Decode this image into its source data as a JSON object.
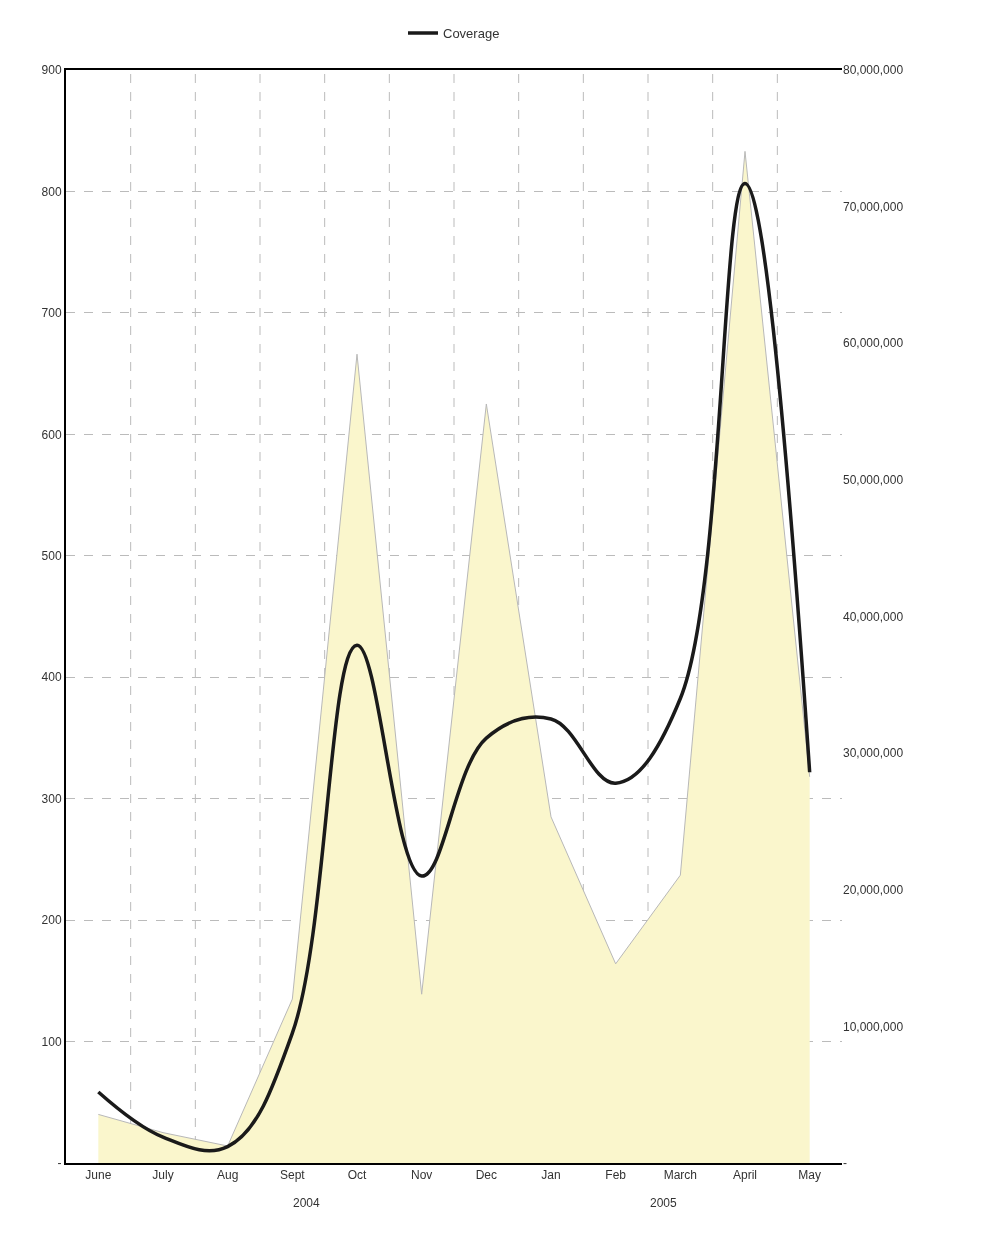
{
  "chart_data": {
    "type": "area",
    "categories": [
      "June",
      "July",
      "Aug",
      "Sept",
      "Oct",
      "Nov",
      "Dec",
      "Jan",
      "Feb",
      "March",
      "April",
      "May"
    ],
    "series": [
      {
        "color": "#faf6cc",
        "values": [
          40,
          25,
          14,
          135,
          666,
          139,
          625,
          285,
          164,
          237,
          833,
          318
        ]
      },
      {
        "type": "line",
        "name": "Coverage",
        "color": "#1a1a1a",
        "axis": "y2",
        "values": [
          5200000,
          1900000,
          1200000,
          9500000,
          37900000,
          21000000,
          31100000,
          32500000,
          27800000,
          34000000,
          71700000,
          28600000
        ]
      }
    ],
    "ylim": [
      0,
      900
    ],
    "yticks": [
      {
        "value": 0,
        "label": "-"
      },
      100,
      200,
      300,
      400,
      500,
      600,
      700,
      800,
      900
    ],
    "y2lim": [
      0,
      80000000
    ],
    "y2ticks": [
      {
        "value": 0,
        "label": "-"
      },
      {
        "value": 10000000,
        "label": "10,000,000"
      },
      {
        "value": 20000000,
        "label": "20,000,000"
      },
      {
        "value": 30000000,
        "label": "30,000,000"
      },
      {
        "value": 40000000,
        "label": "40,000,000"
      },
      {
        "value": 50000000,
        "label": "50,000,000"
      },
      {
        "value": 60000000,
        "label": "60,000,000"
      },
      {
        "value": 70000000,
        "label": "70,000,000"
      },
      {
        "value": 80000000,
        "label": "80,000,000"
      }
    ],
    "annotations": [
      "2004",
      "2005"
    ],
    "grid": true,
    "legend": "top",
    "marker": "none",
    "line_style": "solid"
  }
}
